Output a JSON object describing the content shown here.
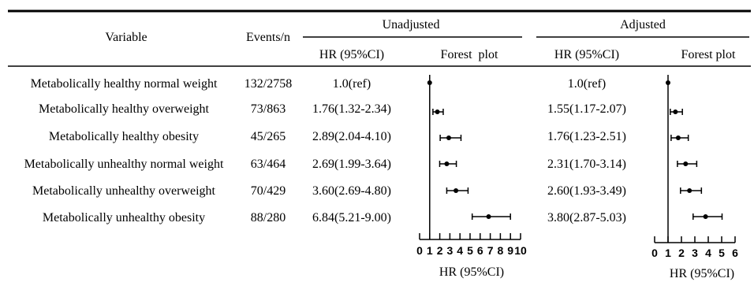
{
  "table": {
    "header": {
      "variable": "Variable",
      "events": "Events/n",
      "unadjusted": "Unadjusted",
      "adjusted": "Adjusted",
      "hr_ci": "HR (95%CI)",
      "forest_unadj": "Forest  plot",
      "forest_adj": "Forest plot"
    },
    "rows": [
      {
        "variable": "Metabolically healthy normal weight",
        "events": "132/2758",
        "unadj_text": "1.0(ref)",
        "adj_text": "1.0(ref)"
      },
      {
        "variable": "Metabolically healthy overweight",
        "events": "73/863",
        "unadj_text": "1.76(1.32-2.34)",
        "adj_text": "1.55(1.17-2.07)"
      },
      {
        "variable": "Metabolically healthy obesity",
        "events": "45/265",
        "unadj_text": "2.89(2.04-4.10)",
        "adj_text": "1.76(1.23-2.51)"
      },
      {
        "variable": "Metabolically unhealthy normal weight",
        "events": "63/464",
        "unadj_text": "2.69(1.99-3.64)",
        "adj_text": "2.31(1.70-3.14)"
      },
      {
        "variable": "Metabolically unhealthy overweight",
        "events": "70/429",
        "unadj_text": "3.60(2.69-4.80)",
        "adj_text": "2.60(1.93-3.49)"
      },
      {
        "variable": "Metabolically unhealthy obesity",
        "events": "88/280",
        "unadj_text": "6.84(5.21-9.00)",
        "adj_text": "3.80(2.87-5.03)"
      }
    ]
  },
  "chart_data": [
    {
      "type": "scatter",
      "subtype": "forest",
      "name": "Unadjusted",
      "xlabel": "HR (95%CI)",
      "xlim": [
        0,
        10
      ],
      "ticks": [
        0,
        1,
        2,
        3,
        4,
        5,
        6,
        7,
        8,
        9,
        10
      ],
      "tick_labels": [
        "0",
        "1",
        "2",
        "3",
        "4",
        "5",
        "6",
        "7",
        "8",
        "9",
        "10"
      ],
      "reference_line": 1,
      "points": [
        {
          "hr": 1.0,
          "lo": null,
          "hi": null
        },
        {
          "hr": 1.76,
          "lo": 1.32,
          "hi": 2.34
        },
        {
          "hr": 2.89,
          "lo": 2.04,
          "hi": 4.1
        },
        {
          "hr": 2.69,
          "lo": 1.99,
          "hi": 3.64
        },
        {
          "hr": 3.6,
          "lo": 2.69,
          "hi": 4.8
        },
        {
          "hr": 6.84,
          "lo": 5.21,
          "hi": 9.0
        }
      ]
    },
    {
      "type": "scatter",
      "subtype": "forest",
      "name": "Adjusted",
      "xlabel": "HR (95%CI)",
      "xlim": [
        0,
        6
      ],
      "ticks": [
        0,
        1,
        2,
        3,
        4,
        5,
        6
      ],
      "tick_labels": [
        "0",
        "1",
        "2",
        "3",
        "4",
        "5",
        "6"
      ],
      "reference_line": 1,
      "points": [
        {
          "hr": 1.0,
          "lo": null,
          "hi": null
        },
        {
          "hr": 1.55,
          "lo": 1.17,
          "hi": 2.07
        },
        {
          "hr": 1.76,
          "lo": 1.23,
          "hi": 2.51
        },
        {
          "hr": 2.31,
          "lo": 1.7,
          "hi": 3.14
        },
        {
          "hr": 2.6,
          "lo": 1.93,
          "hi": 3.49
        },
        {
          "hr": 3.8,
          "lo": 2.87,
          "hi": 5.03
        }
      ]
    }
  ]
}
